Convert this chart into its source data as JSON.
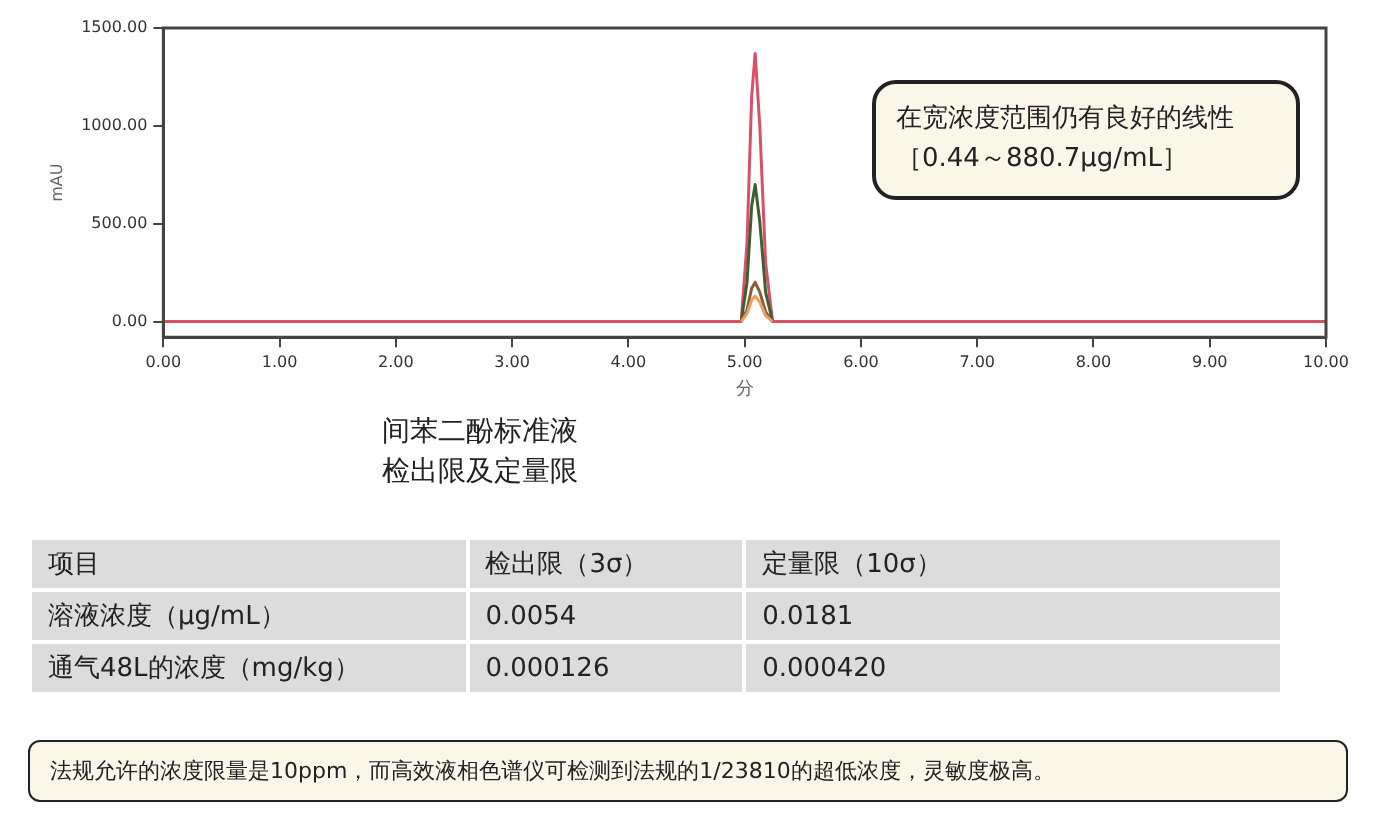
{
  "chart_data": {
    "type": "line",
    "title": "间苯二酚标准液检出限及定量限",
    "xlabel": "分",
    "ylabel": "mAU",
    "xlim": [
      0,
      10
    ],
    "xticks": [
      {
        "value": 0,
        "label": "0.00"
      },
      {
        "value": 1,
        "label": "1.00"
      },
      {
        "value": 2,
        "label": "2.00"
      },
      {
        "value": 3,
        "label": "3.00"
      },
      {
        "value": 4,
        "label": "4.00"
      },
      {
        "value": 5,
        "label": "5.00"
      },
      {
        "value": 6,
        "label": "6.00"
      },
      {
        "value": 7,
        "label": "7.00"
      },
      {
        "value": 8,
        "label": "8.00"
      },
      {
        "value": 9,
        "label": "9.00"
      },
      {
        "value": 10,
        "label": "10.00"
      }
    ],
    "ylim": [
      -80,
      1500
    ],
    "yticks": [
      {
        "value": 0,
        "label": "0.00"
      },
      {
        "value": 500,
        "label": "500.00"
      },
      {
        "value": 1000,
        "label": "1000.00"
      },
      {
        "value": 1500,
        "label": "1500.00"
      }
    ],
    "grid": false,
    "legend": false,
    "series": [
      {
        "color": "#d9506a",
        "x": [
          0,
          4.97,
          5.02,
          5.06,
          5.09,
          5.13,
          5.18,
          5.24,
          10
        ],
        "values": [
          0,
          0,
          400,
          1150,
          1370,
          1000,
          300,
          0,
          0
        ]
      },
      {
        "color": "#3f5f30",
        "x": [
          4.97,
          5.02,
          5.06,
          5.09,
          5.13,
          5.18,
          5.24
        ],
        "values": [
          0,
          200,
          590,
          700,
          510,
          150,
          0
        ]
      },
      {
        "color": "#8a5a3a",
        "x": [
          4.97,
          5.02,
          5.06,
          5.09,
          5.13,
          5.18,
          5.24
        ],
        "values": [
          0,
          60,
          170,
          200,
          150,
          50,
          0
        ]
      },
      {
        "color": "#e8a060",
        "x": [
          4.97,
          5.02,
          5.06,
          5.09,
          5.13,
          5.18,
          5.24
        ],
        "values": [
          0,
          40,
          110,
          130,
          100,
          30,
          0
        ]
      }
    ],
    "annotations": [
      "在宽浓度范围仍有良好的线性［0.44～880.7μg/mL］",
      "项目",
      "检出限（3σ）",
      "定量限（10σ）",
      "溶液浓度（μg/mL）",
      "0.0054",
      "0.0181",
      "通气48L的浓度（mg/kg）",
      "0.000126",
      "0.000420",
      "法规允许的浓度限量是10ppm，而高效液相色谱仪可检测到法规的1/23810的超低浓度，灵敏度极高。"
    ]
  }
}
